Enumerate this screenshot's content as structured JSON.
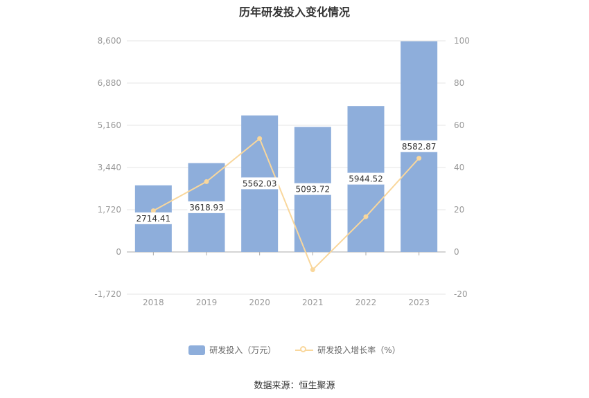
{
  "title": "历年研发投入变化情况",
  "source": "数据来源：恒生聚源",
  "colors": {
    "bar": "#8eaedb",
    "line": "#f9d79c",
    "axis_text": "#999999",
    "grid": "#e6e6e6",
    "value_label_bg": "#ffffff"
  },
  "chart_data": {
    "type": "bar",
    "categories": [
      "2018",
      "2019",
      "2020",
      "2021",
      "2022",
      "2023"
    ],
    "series": [
      {
        "name": "研发投入（万元）",
        "type": "bar",
        "axis": "left",
        "values": [
          2714.41,
          3618.93,
          5562.03,
          5093.72,
          5944.52,
          8582.87
        ],
        "labels": [
          "2714.41",
          "3618.93",
          "5562.03",
          "5093.72",
          "5944.52",
          "8582.87"
        ]
      },
      {
        "name": "研发投入增长率（%）",
        "type": "line",
        "axis": "right",
        "values": [
          19.5,
          33.3,
          53.7,
          -8.4,
          16.7,
          44.4
        ]
      }
    ],
    "y_left": {
      "min": -1720,
      "max": 8600,
      "ticks": [
        -1720,
        0,
        1720,
        3440,
        5160,
        6880,
        8600
      ],
      "tick_labels": [
        "-1,720",
        "0",
        "1,720",
        "3,440",
        "5,160",
        "6,880",
        "8,600"
      ]
    },
    "y_right": {
      "min": -20,
      "max": 100,
      "ticks": [
        -20,
        0,
        20,
        40,
        60,
        80,
        100
      ],
      "tick_labels": [
        "-20",
        "0",
        "20",
        "40",
        "60",
        "80",
        "100"
      ]
    },
    "grid": true,
    "legend_position": "bottom"
  }
}
